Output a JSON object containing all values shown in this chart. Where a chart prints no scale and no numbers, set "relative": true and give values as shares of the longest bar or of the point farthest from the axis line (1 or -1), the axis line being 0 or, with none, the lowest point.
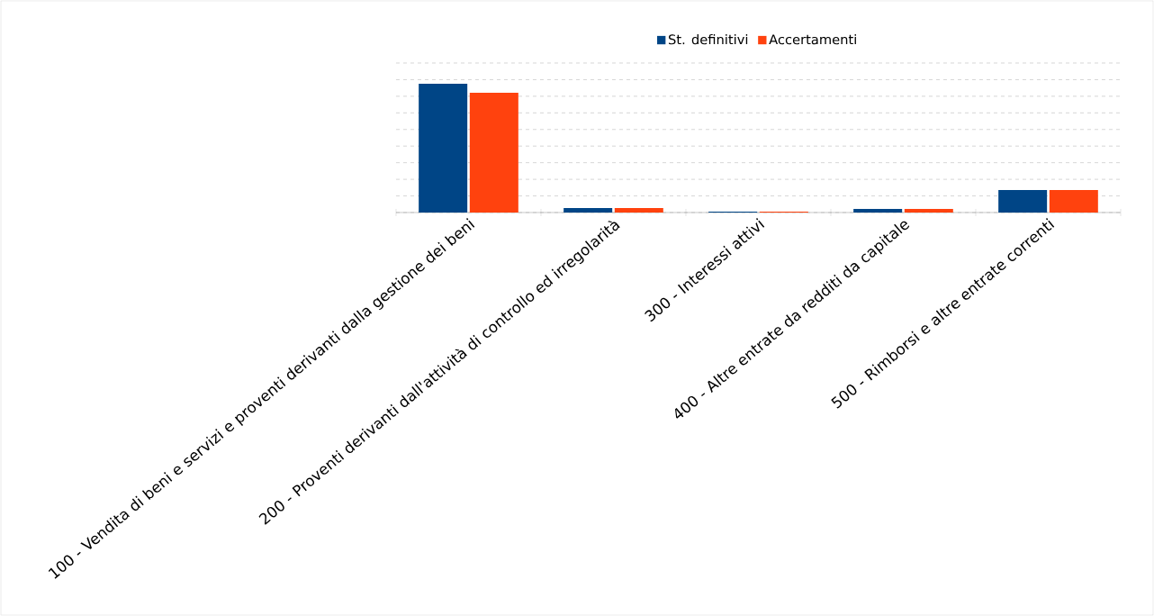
{
  "chart_data": {
    "type": "bar",
    "relative": true,
    "categories": [
      "100 - Vendita di beni e servizi e proventi derivanti dalla gestione dei beni",
      "200 - Proventi derivanti dall'attività di controllo ed irregolarità",
      "300 - Interessi attivi",
      "400 - Altre entrate da redditi da capitale",
      "500 - Rimborsi e altre entrate correnti"
    ],
    "series": [
      {
        "name": "St. definitivi",
        "color": "#004586",
        "values": [
          1,
          0.035,
          0.007,
          0.028,
          0.175
        ]
      },
      {
        "name": "Accertamenti",
        "color": "#ff420e",
        "values": [
          0.93,
          0.035,
          0.007,
          0.028,
          0.175
        ]
      }
    ],
    "grid": "y",
    "legend": "top"
  }
}
